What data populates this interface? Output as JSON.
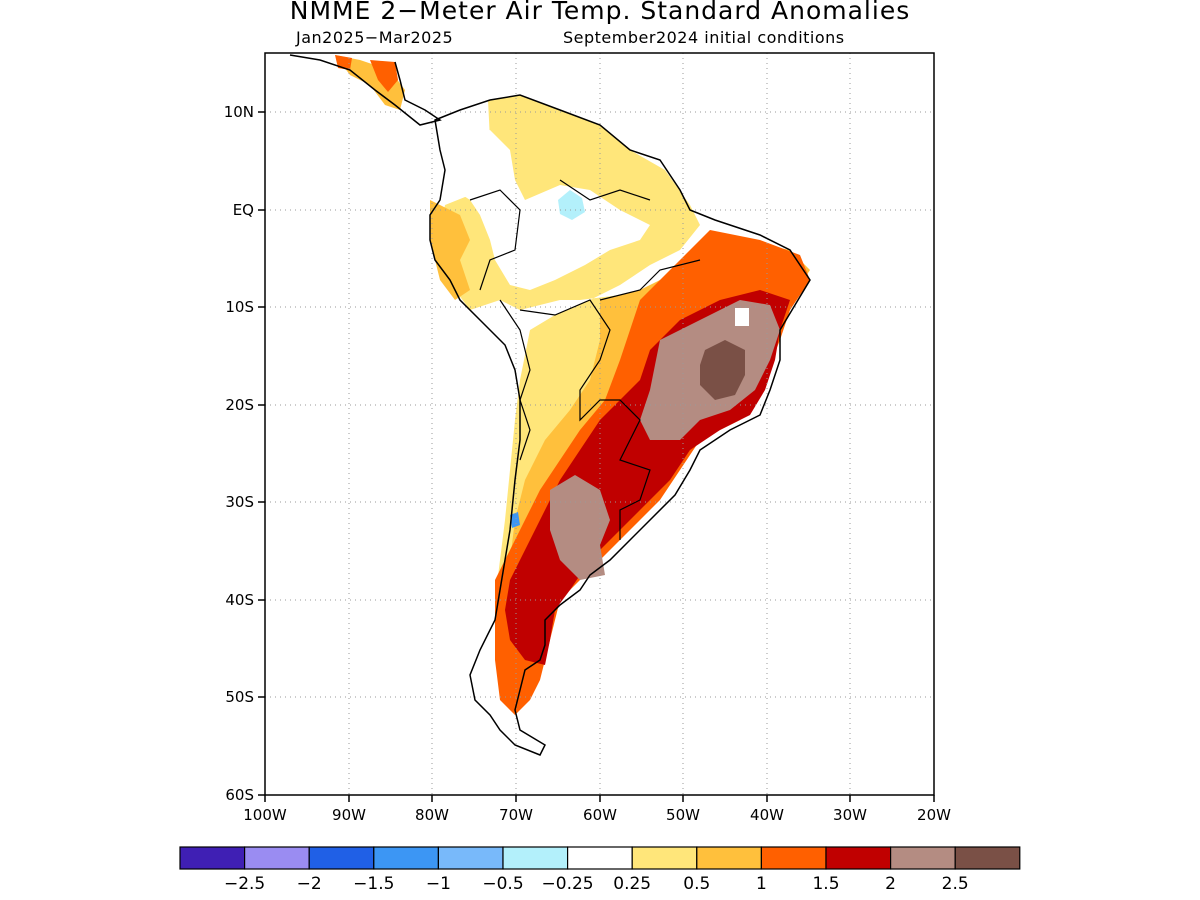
{
  "title": "NMME 2-Meter Air Temp. Standard Anomalies",
  "subtitle_left": "Jan2025-Mar2025",
  "subtitle_right": "September2024 initial conditions",
  "lat_labels": [
    "10N",
    "EQ",
    "10S",
    "20S",
    "30S",
    "40S",
    "50S",
    "60S"
  ],
  "lon_labels": [
    "100W",
    "90W",
    "80W",
    "70W",
    "60W",
    "50W",
    "40W",
    "30W",
    "20W"
  ],
  "colorbar": {
    "colors": [
      "#3f1fb4",
      "#9a8cf2",
      "#2060e6",
      "#3c96f4",
      "#78b9fa",
      "#b3f0fb",
      "#ffffff",
      "#ffe67a",
      "#ffc03c",
      "#ff6000",
      "#c00000",
      "#b48c82",
      "#7a5046"
    ],
    "labels": [
      "-2.5",
      "-2",
      "-1.5",
      "-1",
      "-0.5",
      "-0.25",
      "0.25",
      "0.5",
      "1",
      "1.5",
      "2",
      "2.5"
    ]
  },
  "colors": {
    "frame": "#000000",
    "grid": "#9a9a9a",
    "coast": "#000000"
  }
}
